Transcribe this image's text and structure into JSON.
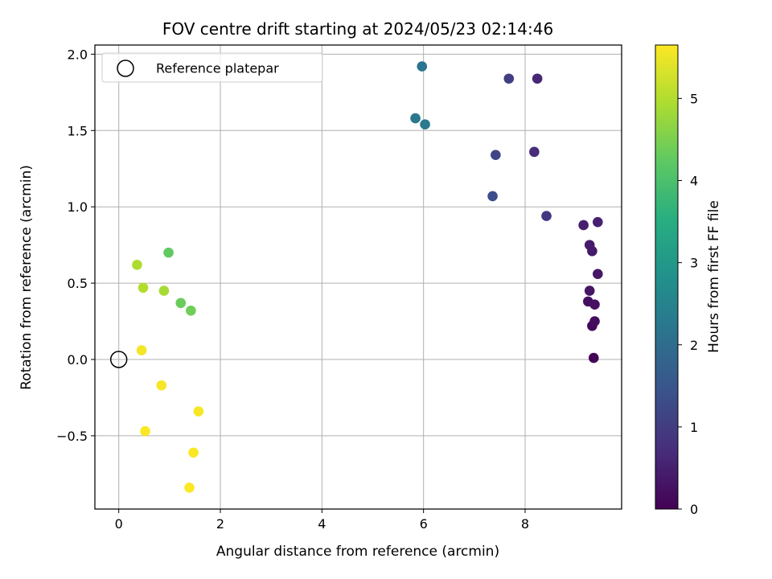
{
  "chart_data": {
    "type": "scatter",
    "title": "FOV centre drift starting at 2024/05/23 02:14:46",
    "xlabel": "Angular distance from reference (arcmin)",
    "ylabel": "Rotation from reference (arcmin)",
    "xlim": [
      -0.47,
      9.9
    ],
    "ylim": [
      -0.98,
      2.06
    ],
    "xticks": [
      0,
      2,
      4,
      6,
      8
    ],
    "xtick_labels": [
      "0",
      "2",
      "4",
      "6",
      "8"
    ],
    "yticks": [
      -0.5,
      0.0,
      0.5,
      1.0,
      1.5,
      2.0
    ],
    "ytick_labels": [
      "−0.5",
      "0.0",
      "0.5",
      "1.0",
      "1.5",
      "2.0"
    ],
    "grid": true,
    "legend": {
      "location": "upper-left",
      "entries": [
        "Reference platepar"
      ]
    },
    "reference_point": {
      "x": 0.0,
      "y": 0.0
    },
    "colorbar": {
      "label": "Hours from first FF file",
      "range": [
        0,
        5.65
      ],
      "ticks": [
        0,
        1,
        2,
        3,
        4,
        5
      ],
      "tick_labels": [
        "0",
        "1",
        "2",
        "3",
        "4",
        "5"
      ],
      "colormap": "viridis"
    },
    "points": [
      {
        "x": 9.35,
        "y": 0.01,
        "hours": 0.05
      },
      {
        "x": 9.32,
        "y": 0.22,
        "hours": 0.12
      },
      {
        "x": 9.37,
        "y": 0.25,
        "hours": 0.18
      },
      {
        "x": 9.24,
        "y": 0.38,
        "hours": 0.22
      },
      {
        "x": 9.37,
        "y": 0.36,
        "hours": 0.26
      },
      {
        "x": 9.27,
        "y": 0.45,
        "hours": 0.3
      },
      {
        "x": 9.43,
        "y": 0.56,
        "hours": 0.34
      },
      {
        "x": 9.32,
        "y": 0.71,
        "hours": 0.38
      },
      {
        "x": 9.27,
        "y": 0.75,
        "hours": 0.42
      },
      {
        "x": 9.15,
        "y": 0.88,
        "hours": 0.46
      },
      {
        "x": 9.43,
        "y": 0.9,
        "hours": 0.5
      },
      {
        "x": 8.24,
        "y": 1.84,
        "hours": 0.6
      },
      {
        "x": 8.18,
        "y": 1.36,
        "hours": 0.72
      },
      {
        "x": 8.42,
        "y": 0.94,
        "hours": 0.9
      },
      {
        "x": 7.68,
        "y": 1.84,
        "hours": 1.05
      },
      {
        "x": 7.42,
        "y": 1.34,
        "hours": 1.2
      },
      {
        "x": 7.36,
        "y": 1.07,
        "hours": 1.32
      },
      {
        "x": 5.97,
        "y": 1.92,
        "hours": 2.2
      },
      {
        "x": 5.84,
        "y": 1.58,
        "hours": 2.25
      },
      {
        "x": 6.03,
        "y": 1.54,
        "hours": 2.3
      },
      {
        "x": 0.98,
        "y": 0.7,
        "hours": 4.25
      },
      {
        "x": 1.22,
        "y": 0.37,
        "hours": 4.35
      },
      {
        "x": 1.42,
        "y": 0.32,
        "hours": 4.4
      },
      {
        "x": 0.36,
        "y": 0.62,
        "hours": 4.95
      },
      {
        "x": 0.48,
        "y": 0.47,
        "hours": 5.0
      },
      {
        "x": 0.89,
        "y": 0.45,
        "hours": 4.9
      },
      {
        "x": 0.45,
        "y": 0.06,
        "hours": 5.55
      },
      {
        "x": 0.84,
        "y": -0.17,
        "hours": 5.6
      },
      {
        "x": 1.57,
        "y": -0.34,
        "hours": 5.6
      },
      {
        "x": 0.52,
        "y": -0.47,
        "hours": 5.62
      },
      {
        "x": 1.47,
        "y": -0.61,
        "hours": 5.62
      },
      {
        "x": 1.39,
        "y": -0.84,
        "hours": 5.64
      }
    ]
  }
}
